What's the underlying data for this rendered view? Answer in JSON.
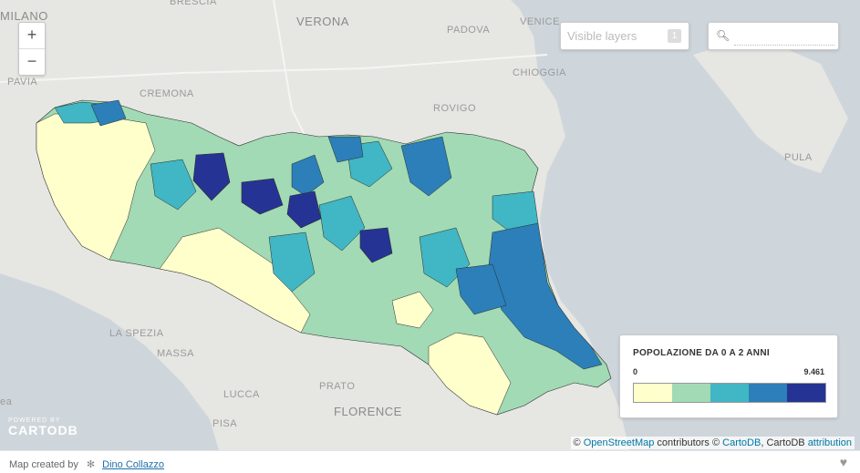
{
  "map": {
    "place_labels": {
      "milano": "MILANO",
      "verona": "VERONA",
      "padova": "PADOVA",
      "venice": "VENICE",
      "pavia": "PAVIA",
      "cremona": "CREMONA",
      "rovigo": "ROVIGO",
      "chioggia": "CHIOGGIA",
      "pula": "PULA",
      "la_spezia": "LA SPEZIA",
      "massa": "MASSA",
      "lucca": "LUCCA",
      "prato": "PRATO",
      "pisa": "PISA",
      "florence": "FLORENCE",
      "sea_fragment": "ea",
      "brescia_fragment": "BRESCIA"
    },
    "colors": {
      "land": "#e6e6e3",
      "sea": "#cfd6db",
      "region_border": "#2a2a2a"
    }
  },
  "zoom": {
    "in": "+",
    "out": "−"
  },
  "layers": {
    "placeholder": "Visible layers",
    "count": "1"
  },
  "search": {
    "icon": "search-icon",
    "value": ""
  },
  "legend": {
    "title": "POPOLAZIONE DA 0 A 2 ANNI",
    "min": "0",
    "max": "9.461",
    "colors": [
      "#ffffcc",
      "#a1dab4",
      "#41b6c4",
      "#2c7fb8",
      "#253494"
    ]
  },
  "attribution": {
    "prefix": "©",
    "osm": "OpenStreetMap",
    "contributors": " contributors ©",
    "cartodb": "CartoDB",
    "suffix": ", CartoDB",
    "attr_link": "attribution"
  },
  "powered": {
    "small": "POWERED BY",
    "logo": "CARTODB"
  },
  "footer": {
    "made": "Map created by",
    "author": "Dino Collazzo"
  }
}
